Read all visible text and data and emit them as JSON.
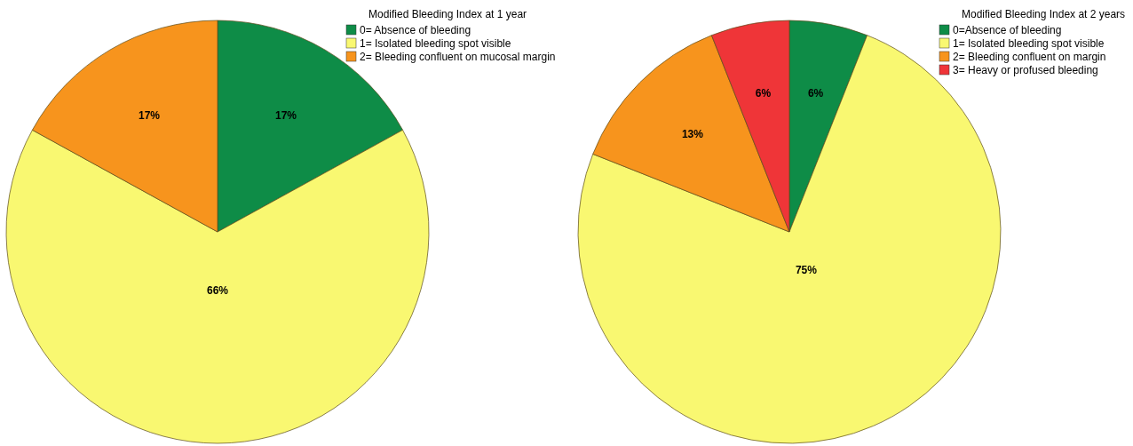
{
  "chart_data": [
    {
      "type": "pie",
      "legend_title": "Modified Bleeding Index at 1 year",
      "categories": [
        "0= Absence of bleeding",
        "1= Isolated bleeding spot visible",
        "2= Bleeding confluent on mucosal margin"
      ],
      "values": [
        17,
        66,
        17
      ],
      "value_labels": [
        "17%",
        "66%",
        "17%"
      ],
      "colors": [
        "#0e8c47",
        "#f9f871",
        "#f7941d"
      ],
      "legend": "top right"
    },
    {
      "type": "pie",
      "legend_title": "Modified Bleeding Index at 2 years",
      "categories": [
        "0=Absence of bleeding",
        "1= Isolated bleeding spot visible",
        "2= Bleeding confluent on margin",
        "3= Heavy or profused bleeding"
      ],
      "values": [
        6,
        75,
        13,
        6
      ],
      "value_labels": [
        "6%",
        "75%",
        "13%",
        "6%"
      ],
      "colors": [
        "#0e8c47",
        "#f9f871",
        "#f7941d",
        "#ef3538"
      ],
      "legend": "top right"
    }
  ]
}
